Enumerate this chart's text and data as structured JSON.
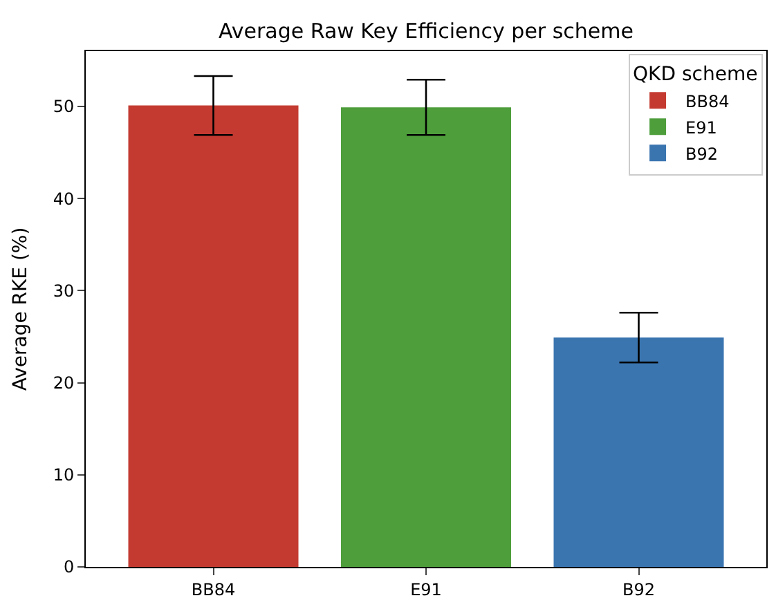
{
  "chart_data": {
    "type": "bar",
    "title": "Average Raw Key Efficiency per scheme",
    "ylabel": "Average RKE (%)",
    "legend_title": "QKD scheme",
    "categories": [
      "BB84",
      "E91",
      "B92"
    ],
    "series": [
      {
        "name": "BB84",
        "color": "#c43a31",
        "values": [
          50.1,
          null,
          null
        ],
        "errors": [
          3.2,
          null,
          null
        ]
      },
      {
        "name": "E91",
        "color": "#4e9e3c",
        "values": [
          null,
          49.9,
          null
        ],
        "errors": [
          null,
          3.0,
          null
        ]
      },
      {
        "name": "B92",
        "color": "#3a75b0",
        "values": [
          null,
          null,
          24.9
        ],
        "errors": [
          null,
          null,
          2.7
        ]
      }
    ],
    "ylim": [
      0,
      56
    ],
    "yticks": [
      0,
      10,
      20,
      30,
      40,
      50
    ],
    "legend": "top right"
  }
}
